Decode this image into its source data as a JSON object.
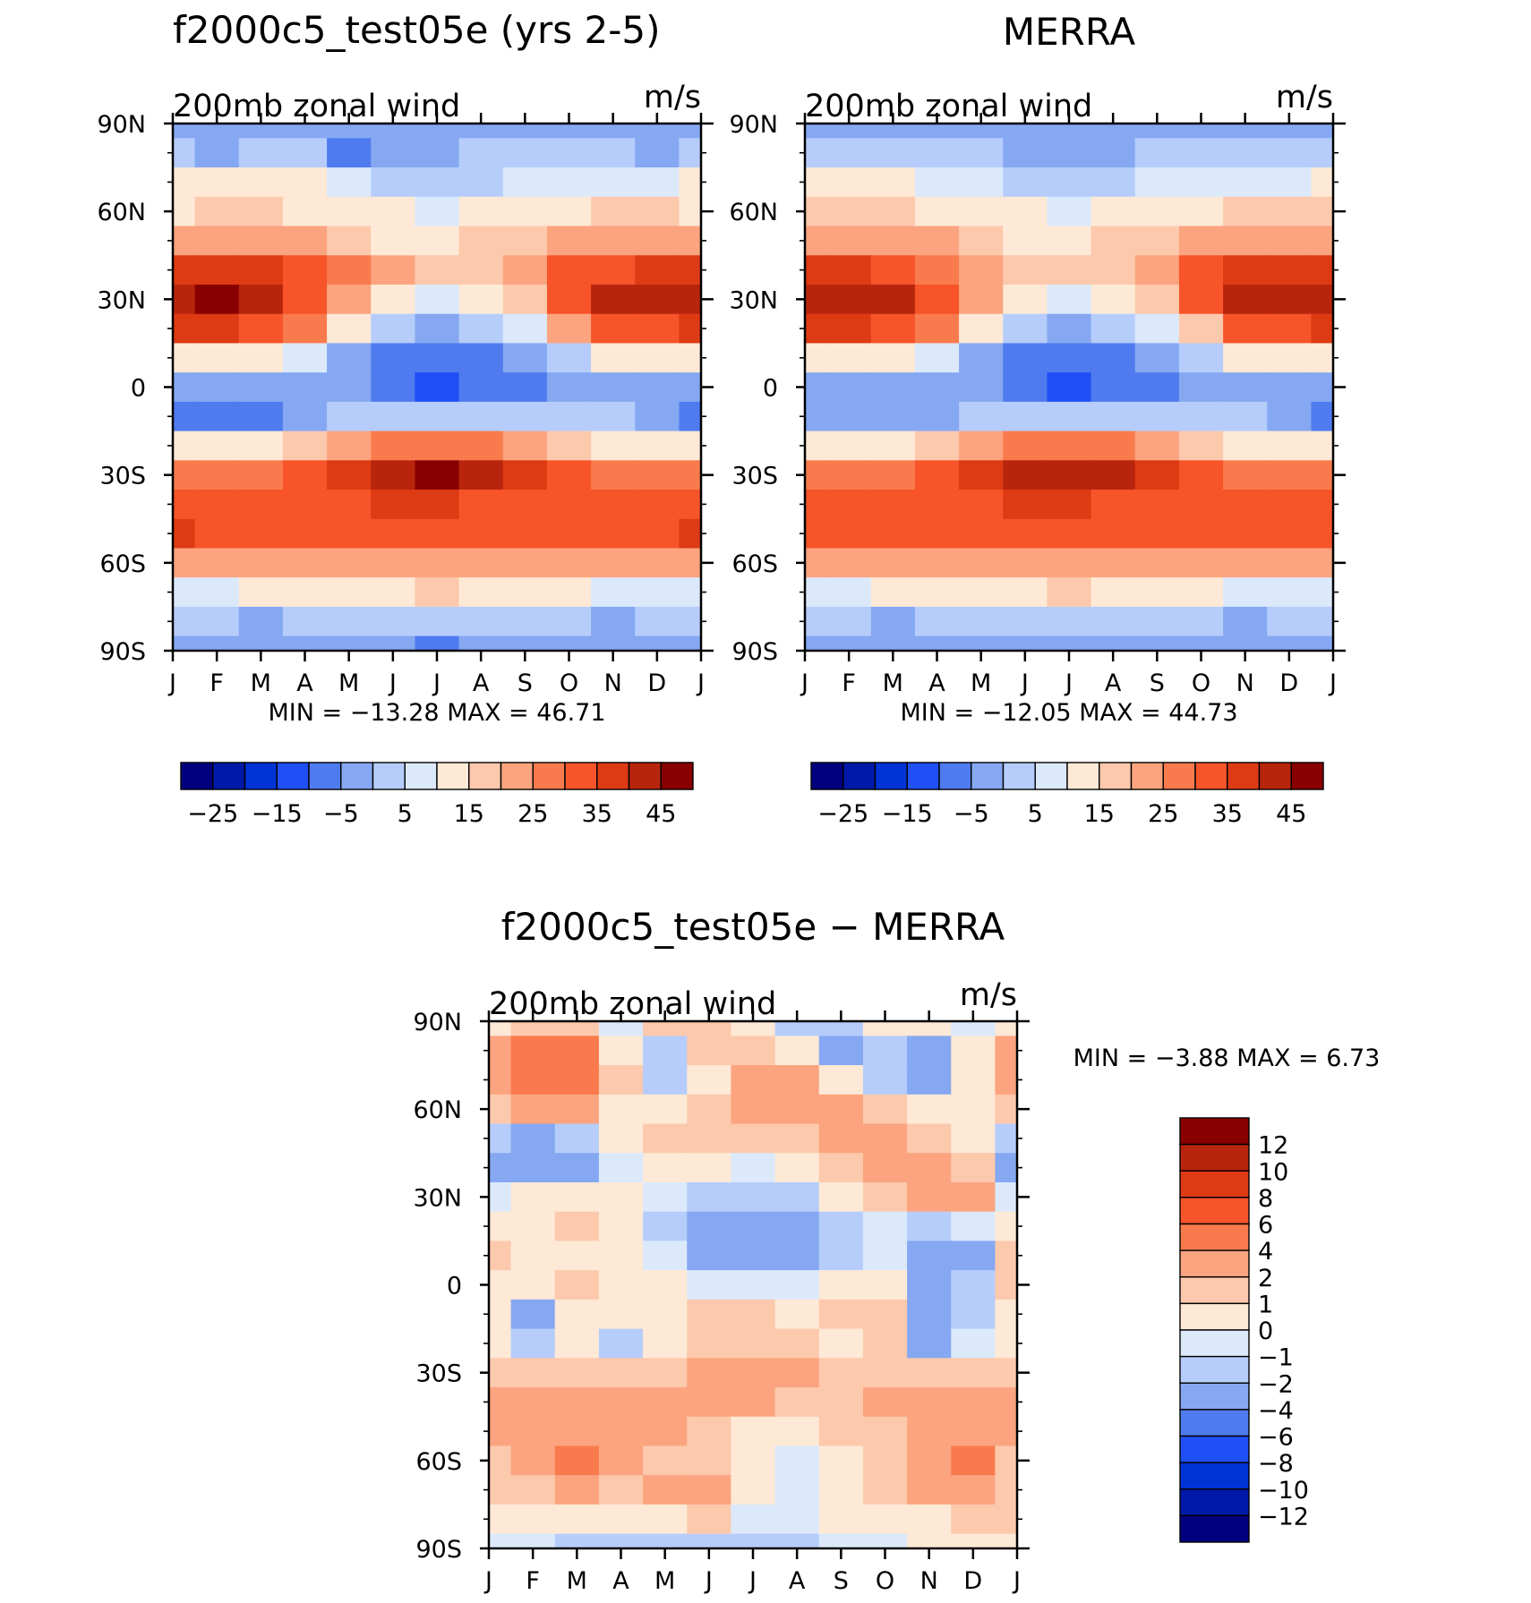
{
  "colors": {
    "model_scale": [
      "#00007f",
      "#0019a8",
      "#0033d6",
      "#1f4ff5",
      "#4f7bef",
      "#86a8f2",
      "#b6cdfb",
      "#dbe9fb",
      "#fde9d6",
      "#fdc9ad",
      "#fba47f",
      "#f97b4d",
      "#f7542a",
      "#de3a14",
      "#b8250d",
      "#880000"
    ],
    "diff_scale": [
      "#00007f",
      "#0019a8",
      "#0033d6",
      "#1f4ff5",
      "#4f7bef",
      "#86a8f2",
      "#b6cdfb",
      "#dbe9fb",
      "#fde9d6",
      "#fdc9ad",
      "#fba47f",
      "#f97b4d",
      "#f7542a",
      "#de3a14",
      "#b8250d",
      "#880000"
    ]
  },
  "chart_data": [
    {
      "type": "heatmap",
      "title": "f2000c5_test05e (yrs 2-5)",
      "subtitle_left": "200mb zonal wind",
      "subtitle_right": "m/s",
      "x_tick_labels": [
        "J",
        "F",
        "M",
        "A",
        "M",
        "J",
        "J",
        "A",
        "S",
        "O",
        "N",
        "D",
        "J"
      ],
      "y_tick_labels": [
        "90N",
        "60N",
        "30N",
        "0",
        "30S",
        "60S",
        "90S"
      ],
      "ylim": [
        -90,
        90
      ],
      "stats_text": "MIN = −13.28 MAX =   46.71",
      "min": -13.28,
      "max": 46.71,
      "colorbar_levels": [
        -30,
        -25,
        -20,
        -15,
        -10,
        -5,
        0,
        5,
        10,
        15,
        20,
        25,
        30,
        35,
        40,
        45
      ],
      "colorbar_labels": [
        "−25",
        "−15",
        "−5",
        "5",
        "15",
        "25",
        "35",
        "45"
      ],
      "latitudes": [
        90,
        80,
        70,
        60,
        50,
        40,
        30,
        20,
        10,
        0,
        -10,
        -20,
        -30,
        -40,
        -50,
        -60,
        -70,
        -80,
        -90
      ],
      "values": [
        [
          -4,
          -4,
          -4,
          -4,
          -4,
          -4,
          -4,
          -4,
          -4,
          -4,
          -4,
          -4,
          -4
        ],
        [
          0,
          -2,
          2,
          0,
          -6,
          -5,
          -2,
          0,
          2,
          0,
          0,
          -2,
          0
        ],
        [
          10,
          11,
          14,
          10,
          5,
          3,
          3,
          4,
          5,
          5,
          7,
          9,
          10
        ],
        [
          14,
          15,
          16,
          14,
          12,
          10,
          9,
          10,
          12,
          13,
          15,
          15,
          14
        ],
        [
          21,
          21,
          21,
          20,
          17,
          14,
          13,
          15,
          18,
          22,
          22,
          22,
          21
        ],
        [
          36,
          37,
          35,
          30,
          25,
          20,
          15,
          18,
          24,
          30,
          34,
          36,
          36
        ],
        [
          43,
          46,
          40,
          33,
          22,
          12,
          8,
          11,
          18,
          30,
          40,
          43,
          43
        ],
        [
          35,
          36,
          33,
          26,
          14,
          2,
          -1,
          1,
          8,
          20,
          30,
          34,
          35
        ],
        [
          14,
          12,
          10,
          5,
          -2,
          -8,
          -10,
          -8,
          -4,
          4,
          10,
          13,
          14
        ],
        [
          -1,
          -2,
          -3,
          -3,
          -5,
          -9,
          -12,
          -10,
          -6,
          -3,
          -2,
          -2,
          -1
        ],
        [
          -8,
          -7,
          -6,
          -3,
          0,
          2,
          1,
          2,
          2,
          1,
          0,
          -2,
          -8
        ],
        [
          10,
          11,
          13,
          17,
          22,
          26,
          28,
          27,
          23,
          18,
          14,
          12,
          10
        ],
        [
          25,
          26,
          28,
          32,
          38,
          43,
          46,
          44,
          39,
          32,
          28,
          26,
          25
        ],
        [
          30,
          31,
          30,
          31,
          33,
          35,
          35,
          34,
          33,
          31,
          30,
          30,
          30
        ],
        [
          35,
          34,
          33,
          31,
          30,
          30,
          30,
          30,
          30,
          33,
          34,
          34,
          35
        ],
        [
          20,
          20,
          20,
          20,
          20,
          20,
          20,
          20,
          20,
          20,
          20,
          20,
          20
        ],
        [
          8,
          9,
          10,
          11,
          12,
          13,
          15,
          14,
          12,
          10,
          9,
          8,
          8
        ],
        [
          0,
          0,
          -1,
          0,
          2,
          3,
          3,
          2,
          1,
          0,
          -1,
          0,
          0
        ],
        [
          -3,
          -3,
          -3,
          -3,
          -3,
          -3,
          -6,
          -3,
          -3,
          -3,
          -3,
          -3,
          -3
        ]
      ]
    },
    {
      "type": "heatmap",
      "title": "MERRA",
      "subtitle_left": "200mb zonal wind",
      "subtitle_right": "m/s",
      "x_tick_labels": [
        "J",
        "F",
        "M",
        "A",
        "M",
        "J",
        "J",
        "A",
        "S",
        "O",
        "N",
        "D",
        "J"
      ],
      "y_tick_labels": [
        "90N",
        "60N",
        "30N",
        "0",
        "30S",
        "60S",
        "90S"
      ],
      "ylim": [
        -90,
        90
      ],
      "stats_text": "MIN = −12.05 MAX =   44.73",
      "min": -12.05,
      "max": 44.73,
      "colorbar_levels": [
        -30,
        -25,
        -20,
        -15,
        -10,
        -5,
        0,
        5,
        10,
        15,
        20,
        25,
        30,
        35,
        40,
        45
      ],
      "colorbar_labels": [
        "−25",
        "−15",
        "−5",
        "5",
        "15",
        "25",
        "35",
        "45"
      ],
      "latitudes": [
        90,
        80,
        70,
        60,
        50,
        40,
        30,
        20,
        10,
        0,
        -10,
        -20,
        -30,
        -40,
        -50,
        -60,
        -70,
        -80,
        -90
      ],
      "values": [
        [
          -3,
          -3,
          -3,
          -3,
          -3,
          -3,
          -3,
          -3,
          -3,
          -3,
          -3,
          -3,
          -3
        ],
        [
          2,
          2,
          2,
          2,
          0,
          -2,
          -3,
          -2,
          0,
          1,
          2,
          2,
          2
        ],
        [
          10,
          10,
          10,
          8,
          6,
          4,
          3,
          4,
          6,
          7,
          8,
          9,
          10
        ],
        [
          17,
          17,
          16,
          14,
          12,
          10,
          9,
          10,
          12,
          14,
          16,
          17,
          17
        ],
        [
          23,
          23,
          22,
          20,
          17,
          14,
          13,
          15,
          18,
          22,
          24,
          24,
          23
        ],
        [
          36,
          36,
          34,
          29,
          24,
          18,
          15,
          18,
          24,
          31,
          35,
          37,
          36
        ],
        [
          44,
          44,
          40,
          32,
          22,
          12,
          8,
          11,
          18,
          30,
          40,
          44,
          44
        ],
        [
          35,
          35,
          32,
          25,
          14,
          2,
          -1,
          0,
          7,
          19,
          30,
          34,
          35
        ],
        [
          14,
          12,
          10,
          5,
          -2,
          -8,
          -10,
          -8,
          -4,
          4,
          10,
          13,
          14
        ],
        [
          -1,
          -2,
          -3,
          -3,
          -5,
          -9,
          -11,
          -10,
          -6,
          -3,
          -2,
          -2,
          -3
        ],
        [
          -5,
          -5,
          -5,
          -3,
          0,
          2,
          1,
          2,
          2,
          1,
          0,
          -2,
          -6
        ],
        [
          10,
          11,
          13,
          17,
          22,
          26,
          28,
          27,
          23,
          18,
          14,
          12,
          10
        ],
        [
          26,
          27,
          28,
          32,
          38,
          42,
          44,
          43,
          38,
          32,
          28,
          27,
          26
        ],
        [
          30,
          31,
          30,
          31,
          33,
          35,
          35,
          34,
          33,
          31,
          30,
          30,
          30
        ],
        [
          34,
          33,
          32,
          31,
          30,
          30,
          30,
          30,
          32,
          33,
          33,
          34,
          34
        ],
        [
          20,
          20,
          20,
          20,
          20,
          20,
          20,
          20,
          20,
          20,
          20,
          20,
          20
        ],
        [
          8,
          9,
          10,
          11,
          12,
          13,
          15,
          14,
          12,
          10,
          9,
          8,
          8
        ],
        [
          0,
          0,
          -1,
          0,
          2,
          3,
          3,
          2,
          1,
          0,
          -1,
          0,
          0
        ],
        [
          -3,
          -3,
          -3,
          -3,
          -3,
          -3,
          -3,
          -3,
          -3,
          -3,
          -3,
          -3,
          -3
        ]
      ]
    },
    {
      "type": "heatmap",
      "title": "f2000c5_test05e − MERRA",
      "subtitle_left": "200mb zonal wind",
      "subtitle_right": "m/s",
      "x_tick_labels": [
        "J",
        "F",
        "M",
        "A",
        "M",
        "J",
        "J",
        "A",
        "S",
        "O",
        "N",
        "D",
        "J"
      ],
      "y_tick_labels": [
        "90N",
        "60N",
        "30N",
        "0",
        "30S",
        "60S",
        "90S"
      ],
      "ylim": [
        -90,
        90
      ],
      "stats_text": "MIN =    −3.88 MAX =    6.73",
      "min": -3.88,
      "max": 6.73,
      "colorbar_levels": [
        -14,
        -12,
        -10,
        -8,
        -6,
        -4,
        -2,
        -1,
        0,
        1,
        2,
        4,
        6,
        8,
        10,
        12
      ],
      "colorbar_labels": [
        "12",
        "10",
        "8",
        "6",
        "4",
        "2",
        "1",
        "0",
        "−1",
        "−2",
        "−4",
        "−6",
        "−8",
        "−10",
        "−12"
      ],
      "latitudes": [
        90,
        80,
        70,
        60,
        50,
        40,
        30,
        20,
        10,
        0,
        -10,
        -20,
        -30,
        -40,
        -50,
        -60,
        -70,
        -80,
        -90
      ],
      "values": [
        [
          0.5,
          1.5,
          1.5,
          -0.5,
          1.5,
          1.5,
          0.5,
          -1.5,
          -1.5,
          0.5,
          0.5,
          -0.5,
          0.5
        ],
        [
          2.5,
          4.5,
          4.5,
          0.5,
          -1.5,
          1.5,
          1.5,
          0.5,
          -2.5,
          -1.5,
          -2.5,
          0.5,
          2.5
        ],
        [
          2.5,
          4.5,
          4.5,
          1.5,
          -1.5,
          0.5,
          2.5,
          2.5,
          0.5,
          -1.5,
          -2.5,
          0.5,
          2.5
        ],
        [
          1.5,
          2.5,
          2.5,
          0.5,
          0.5,
          1.5,
          2.5,
          2.5,
          2.5,
          1.5,
          0.5,
          0.5,
          1.5
        ],
        [
          -1.5,
          -2.5,
          -1.5,
          0.5,
          1.5,
          1.5,
          1.5,
          1.5,
          2.5,
          2.5,
          1.5,
          0.5,
          -1.5
        ],
        [
          -2.5,
          -2.5,
          -2.5,
          -0.5,
          0.5,
          0.5,
          -0.5,
          0.5,
          1.5,
          2.5,
          3.5,
          1.5,
          -2.5
        ],
        [
          -0.5,
          0.5,
          0.5,
          0.5,
          -0.5,
          -1.5,
          -1.5,
          -1.5,
          0.5,
          1.5,
          2.5,
          2.5,
          -0.5
        ],
        [
          0.5,
          0.5,
          1.5,
          0.5,
          -1.5,
          -2.5,
          -3.5,
          -2.5,
          -1.5,
          -0.5,
          -1.5,
          -0.5,
          0.5
        ],
        [
          1.5,
          0.5,
          0.5,
          0.5,
          -0.5,
          -2.5,
          -3.5,
          -3.5,
          -1.5,
          -0.5,
          -2.5,
          -2.5,
          1.5
        ],
        [
          0.5,
          0.5,
          1.5,
          0.5,
          0.5,
          -0.5,
          -0.5,
          -0.5,
          0.5,
          0.5,
          -2.5,
          -1.5,
          1.5
        ],
        [
          0.5,
          -2.5,
          0.5,
          0.5,
          0.5,
          1.5,
          1.5,
          0.5,
          1.5,
          1.5,
          -2.5,
          -1.5,
          0.5
        ],
        [
          0.5,
          -1.5,
          0.5,
          -1.5,
          0.5,
          1.5,
          1.5,
          1.5,
          0.5,
          1.5,
          -2.5,
          -0.5,
          0.5
        ],
        [
          1.5,
          1.5,
          1.5,
          1.5,
          1.5,
          2.5,
          2.5,
          2.5,
          1.5,
          1.5,
          1.5,
          1.5,
          1.5
        ],
        [
          2.5,
          2.5,
          2.5,
          2.5,
          2.5,
          2.5,
          2.5,
          1.5,
          1.5,
          2.5,
          2.5,
          2.5,
          2.5
        ],
        [
          2.5,
          2.5,
          2.5,
          2.5,
          2.5,
          1.5,
          0.5,
          0.5,
          1.5,
          1.5,
          2.5,
          3.5,
          2.5
        ],
        [
          1.5,
          2.5,
          4.5,
          2.5,
          1.5,
          1.5,
          0.5,
          -0.5,
          0.5,
          1.5,
          2.5,
          4.5,
          1.5
        ],
        [
          1.5,
          1.5,
          2.5,
          1.5,
          2.5,
          3.5,
          0.5,
          -0.5,
          0.5,
          1.5,
          2.5,
          2.5,
          1.5
        ],
        [
          0.5,
          0.5,
          0.5,
          0.5,
          0.5,
          1.5,
          -0.5,
          -0.5,
          0.5,
          0.5,
          0.5,
          1.5,
          1.5
        ],
        [
          -0.5,
          -0.5,
          -1.5,
          -1.5,
          -1.5,
          -1.5,
          -1.5,
          -1.5,
          -0.5,
          -0.5,
          0.5,
          0.5,
          0.5
        ]
      ]
    }
  ]
}
